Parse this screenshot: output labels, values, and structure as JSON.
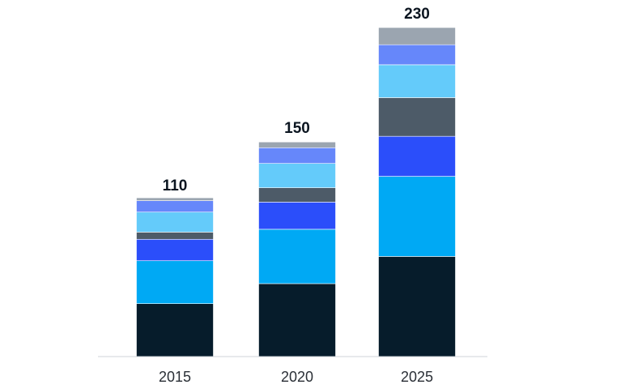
{
  "chart_data": {
    "type": "bar",
    "stacked": true,
    "categories": [
      "2015",
      "2020",
      "2025"
    ],
    "totals": [
      110,
      150,
      230
    ],
    "series": [
      {
        "color": "#061c2b",
        "values": [
          37,
          51,
          70
        ]
      },
      {
        "color": "#00a9f4",
        "values": [
          30,
          38,
          56
        ]
      },
      {
        "color": "#2b4efa",
        "values": [
          15,
          19,
          28
        ]
      },
      {
        "color": "#4d5b68",
        "values": [
          5,
          10,
          27
        ]
      },
      {
        "color": "#64cbfa",
        "values": [
          14,
          17,
          23
        ]
      },
      {
        "color": "#6687fa",
        "values": [
          8,
          11,
          14
        ]
      },
      {
        "color": "#9ba5b0",
        "values": [
          2,
          4,
          12
        ]
      }
    ],
    "ylim": [
      0,
      230
    ],
    "grid": false,
    "legend": "none"
  }
}
